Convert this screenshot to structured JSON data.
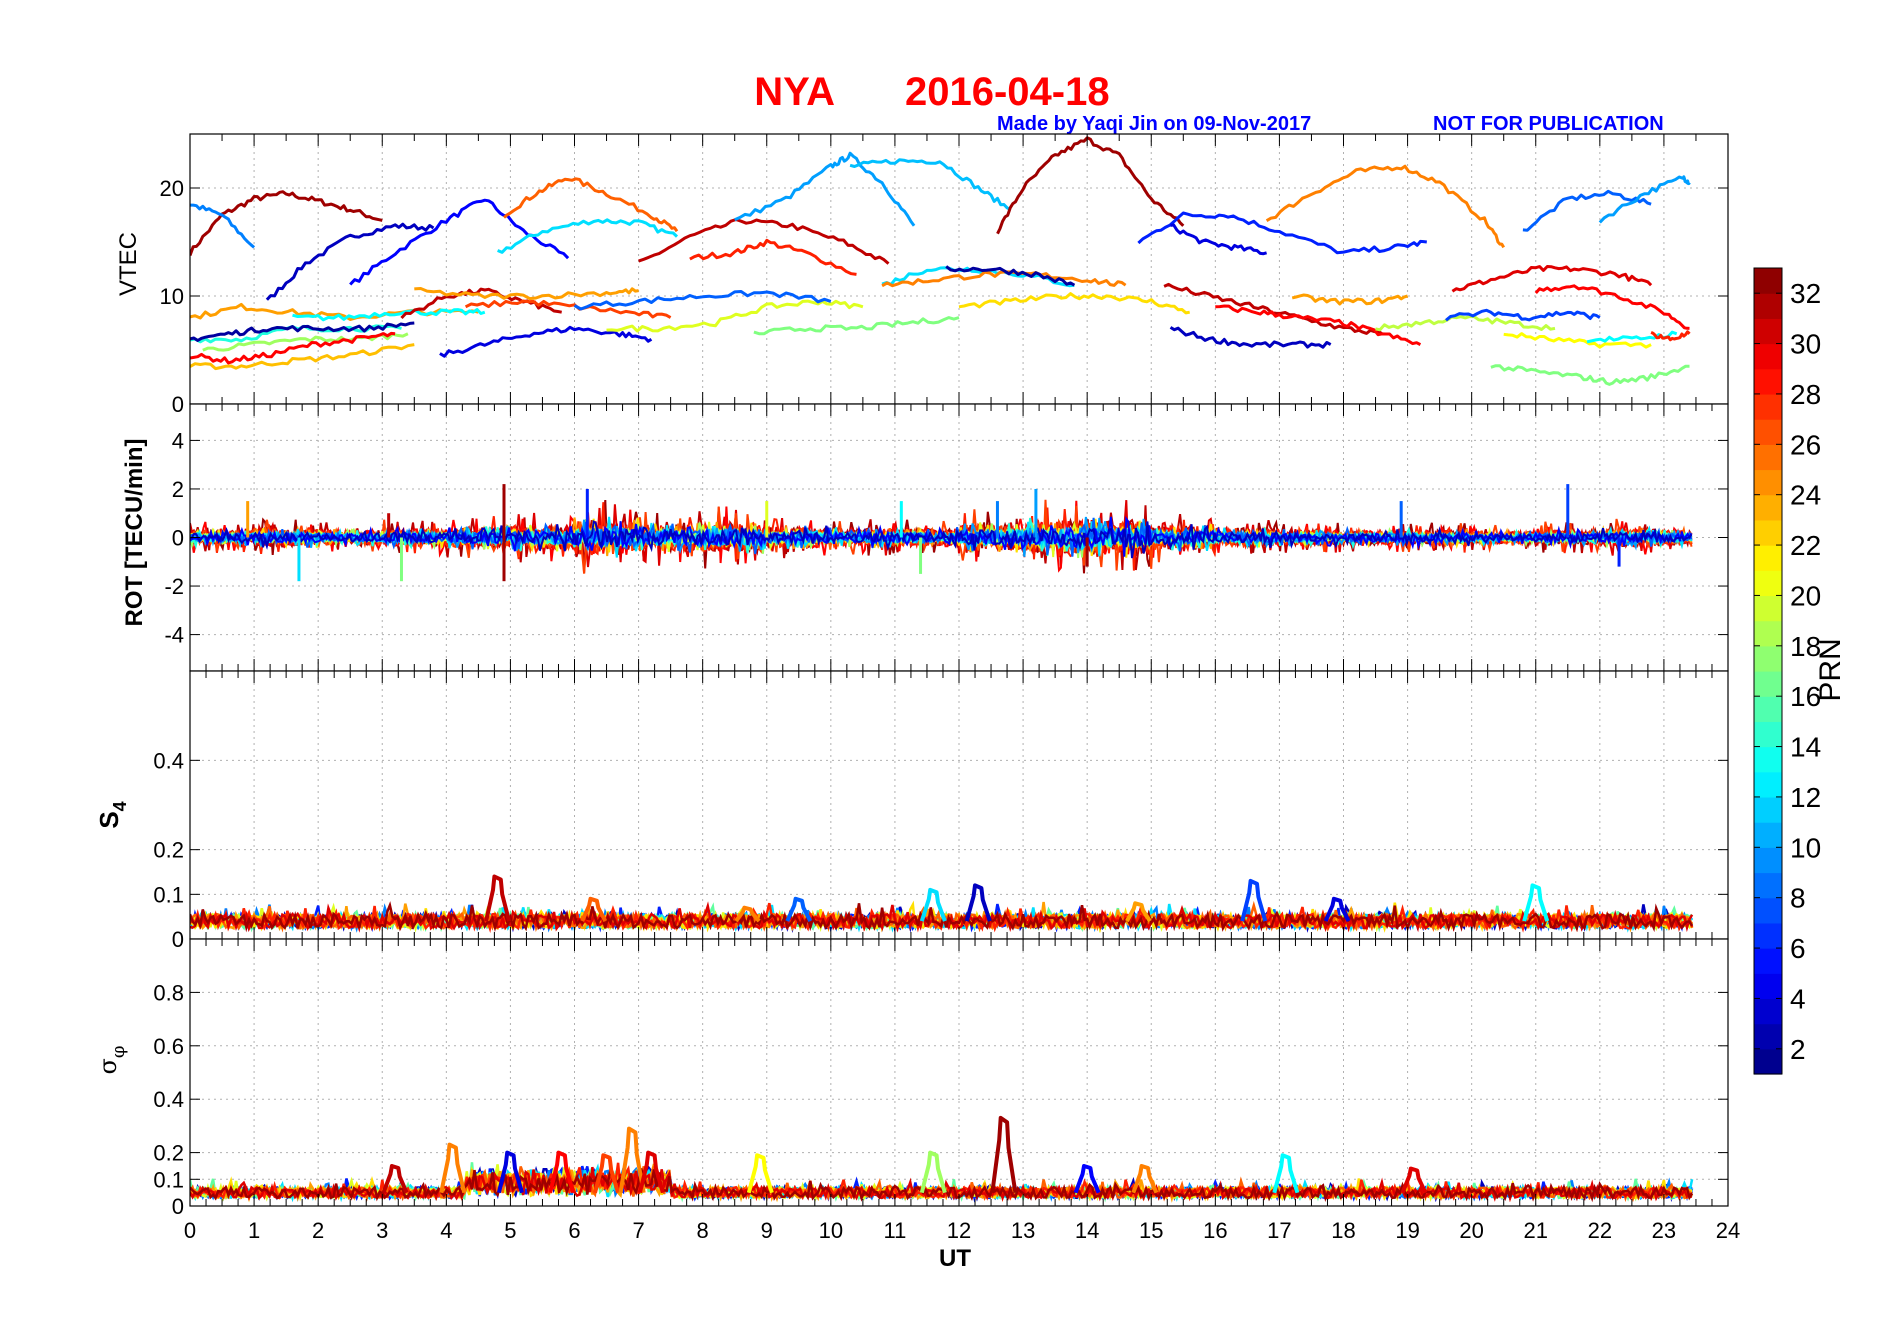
{
  "title": {
    "station": "NYA",
    "date": "2016-04-18"
  },
  "credit": "Made by Yaqi Jin on 09-Nov-2017",
  "notice": "NOT FOR PUBLICATION",
  "colors": {
    "title": "#ff0000",
    "credit": "#0000ff",
    "axis": "#000000",
    "grid": "#b0b0b0"
  },
  "x_axis": {
    "label": "UT",
    "range": [
      0,
      24
    ],
    "ticks": [
      0,
      1,
      2,
      3,
      4,
      5,
      6,
      7,
      8,
      9,
      10,
      11,
      12,
      13,
      14,
      15,
      16,
      17,
      18,
      19,
      20,
      21,
      22,
      23,
      24
    ]
  },
  "colorbar": {
    "label": "PRN",
    "range": [
      1,
      33
    ],
    "ticks": [
      2,
      4,
      6,
      8,
      10,
      12,
      14,
      16,
      18,
      20,
      22,
      24,
      26,
      28,
      30,
      32
    ],
    "colormap": "jet"
  },
  "chart_data": [
    {
      "type": "line",
      "panel": "vtec",
      "ylabel": "VTEC",
      "xlim": [
        0,
        24
      ],
      "ylim": [
        0,
        25
      ],
      "yticks": [
        0,
        10,
        20
      ],
      "series": [
        {
          "prn": 32,
          "x": [
            0.0,
            0.5,
            1.0,
            1.5,
            2.0,
            2.5,
            3.0
          ],
          "y": [
            14,
            17.5,
            19,
            19.5,
            18.8,
            18,
            17
          ]
        },
        {
          "prn": 9,
          "x": [
            0.0,
            0.5,
            1.0
          ],
          "y": [
            18.5,
            17.5,
            14.5
          ]
        },
        {
          "prn": 3,
          "x": [
            1.2,
            1.8,
            2.5,
            3.2,
            3.8
          ],
          "y": [
            9.5,
            13,
            15.5,
            16.5,
            16.3
          ]
        },
        {
          "prn": 5,
          "x": [
            2.5,
            3.2,
            4.0,
            4.6,
            5.2,
            5.9
          ],
          "y": [
            11,
            14,
            17,
            19,
            16,
            13.5
          ]
        },
        {
          "prn": 12,
          "x": [
            4.8,
            5.5,
            6.3,
            7.0,
            7.6
          ],
          "y": [
            14,
            16,
            17,
            16.8,
            15.5
          ]
        },
        {
          "prn": 26,
          "x": [
            4.9,
            5.4,
            5.9,
            6.5,
            7.2,
            7.6
          ],
          "y": [
            17.5,
            19.5,
            21,
            19.5,
            17.5,
            16
          ]
        },
        {
          "prn": 31,
          "x": [
            7.0,
            7.8,
            8.6,
            9.4,
            10.2,
            10.9
          ],
          "y": [
            13,
            15.5,
            17,
            16.5,
            15,
            13
          ]
        },
        {
          "prn": 28,
          "x": [
            7.8,
            8.5,
            9.0,
            9.6,
            10.4
          ],
          "y": [
            13.5,
            14,
            15,
            14,
            12
          ]
        },
        {
          "prn": 10,
          "x": [
            8.5,
            9.3,
            10.0,
            10.3,
            10.8,
            11.3
          ],
          "y": [
            17,
            19,
            22,
            23,
            20.5,
            16.5
          ]
        },
        {
          "prn": 11,
          "x": [
            10.3,
            11.0,
            11.7,
            12.3,
            12.8
          ],
          "y": [
            22,
            22.5,
            22.5,
            20,
            18
          ]
        },
        {
          "prn": 32,
          "x": [
            12.6,
            13.0,
            13.5,
            14.0,
            14.5,
            15.0,
            15.5
          ],
          "y": [
            16,
            20,
            23,
            24.5,
            23,
            19,
            16.5
          ]
        },
        {
          "prn": 6,
          "x": [
            14.8,
            15.5,
            16.2,
            17.0,
            18.0,
            18.8,
            19.3
          ],
          "y": [
            15,
            17.5,
            17.5,
            16,
            14,
            14.5,
            15
          ]
        },
        {
          "prn": 4,
          "x": [
            15.3,
            15.8,
            16.3,
            16.8
          ],
          "y": [
            16.5,
            15,
            14.5,
            14
          ]
        },
        {
          "prn": 25,
          "x": [
            16.8,
            17.5,
            18.2,
            18.9,
            19.5,
            20.2,
            20.5
          ],
          "y": [
            17,
            19.5,
            21.5,
            22,
            20.5,
            17,
            14.5
          ]
        },
        {
          "prn": 8,
          "x": [
            20.8,
            21.5,
            22.2,
            22.8
          ],
          "y": [
            16,
            19,
            19.5,
            18.5
          ]
        },
        {
          "prn": 10,
          "x": [
            22.0,
            22.7,
            23.3,
            23.4
          ],
          "y": [
            17,
            19.5,
            21,
            20.5
          ]
        },
        {
          "prn": 30,
          "x": [
            19.7,
            20.3,
            21.0,
            21.6,
            22.3,
            22.8
          ],
          "y": [
            10.5,
            11.5,
            12.5,
            12.5,
            12,
            11
          ]
        },
        {
          "prn": 29,
          "x": [
            21.0,
            21.6,
            22.3,
            23.0,
            23.4
          ],
          "y": [
            10.5,
            11,
            10,
            8.5,
            7
          ]
        },
        {
          "prn": 24,
          "x": [
            0.0,
            0.8,
            1.6,
            2.5,
            3.5,
            4.5
          ],
          "y": [
            8,
            9,
            8.5,
            8,
            8.5,
            8.5
          ]
        },
        {
          "prn": 14,
          "x": [
            0.0,
            0.8,
            1.6,
            2.5,
            3.3
          ],
          "y": [
            6,
            6,
            7,
            7,
            7
          ]
        },
        {
          "prn": 2,
          "x": [
            0.0,
            0.6,
            1.2,
            2.0,
            2.8,
            3.5
          ],
          "y": [
            6,
            6.5,
            7,
            7,
            7,
            7.5
          ]
        },
        {
          "prn": 23,
          "x": [
            0.0,
            0.8,
            1.6,
            2.5,
            3.5
          ],
          "y": [
            3.5,
            3.5,
            4,
            4.5,
            5.5
          ]
        },
        {
          "prn": 18,
          "x": [
            0.2,
            1.0,
            1.8,
            2.6,
            3.4
          ],
          "y": [
            5,
            5.5,
            6,
            6,
            6.5
          ]
        },
        {
          "prn": 29,
          "x": [
            0.0,
            0.6,
            1.2,
            1.9,
            2.6,
            3.2
          ],
          "y": [
            4.5,
            4,
            4.5,
            5.5,
            6,
            6.5
          ]
        },
        {
          "prn": 13,
          "x": [
            1.6,
            2.4,
            3.2,
            4.0,
            4.6
          ],
          "y": [
            8,
            8,
            8.5,
            8.5,
            8.5
          ]
        },
        {
          "prn": 4,
          "x": [
            3.9,
            4.6,
            5.3,
            6.0,
            6.7,
            7.2
          ],
          "y": [
            4.5,
            5.5,
            6.5,
            7,
            6.5,
            6
          ]
        },
        {
          "prn": 31,
          "x": [
            3.3,
            4.0,
            4.6,
            5.2,
            5.8
          ],
          "y": [
            8,
            10,
            10.5,
            9.5,
            8.5
          ]
        },
        {
          "prn": 24,
          "x": [
            3.5,
            4.5,
            5.5,
            6.5,
            7.0
          ],
          "y": [
            10.5,
            10,
            10,
            10.3,
            10.5
          ]
        },
        {
          "prn": 27,
          "x": [
            4.3,
            5.2,
            6.0,
            6.8,
            7.5
          ],
          "y": [
            9,
            9.5,
            9,
            8.5,
            8
          ]
        },
        {
          "prn": 20,
          "x": [
            6.5,
            7.3,
            8.2,
            9.0,
            9.8,
            10.5
          ],
          "y": [
            7,
            7,
            7.5,
            9,
            9.5,
            9
          ]
        },
        {
          "prn": 8,
          "x": [
            6.0,
            7.0,
            8.0,
            9.0,
            10.0
          ],
          "y": [
            9,
            9.5,
            10,
            10.3,
            9.5
          ]
        },
        {
          "prn": 17,
          "x": [
            8.8,
            9.6,
            10.4,
            11.2,
            12.0
          ],
          "y": [
            6.5,
            7,
            7,
            7.5,
            8
          ]
        },
        {
          "prn": 12,
          "x": [
            10.8,
            11.5,
            12.2,
            13.0,
            13.8
          ],
          "y": [
            11,
            12.5,
            12.5,
            12,
            11
          ]
        },
        {
          "prn": 25,
          "x": [
            10.8,
            11.6,
            12.4,
            13.2,
            14.0,
            14.6
          ],
          "y": [
            11,
            11.5,
            12,
            12,
            11.5,
            11
          ]
        },
        {
          "prn": 2,
          "x": [
            11.8,
            12.5,
            13.2,
            13.8
          ],
          "y": [
            12.5,
            12.5,
            12,
            11
          ]
        },
        {
          "prn": 22,
          "x": [
            12.0,
            12.8,
            13.6,
            14.3,
            15.0,
            15.6
          ],
          "y": [
            9,
            9.5,
            10,
            10,
            9.5,
            8.5
          ]
        },
        {
          "prn": 31,
          "x": [
            15.2,
            15.9,
            16.6,
            17.3,
            18.0,
            18.6
          ],
          "y": [
            11,
            10,
            9,
            8,
            7,
            6.5
          ]
        },
        {
          "prn": 29,
          "x": [
            16.0,
            16.7,
            17.3,
            18.0,
            18.6,
            19.2
          ],
          "y": [
            9,
            8.5,
            8,
            7.5,
            6.5,
            5.5
          ]
        },
        {
          "prn": 3,
          "x": [
            15.3,
            15.9,
            16.5,
            17.2,
            17.8
          ],
          "y": [
            7,
            6,
            5.5,
            5.5,
            5.5
          ]
        },
        {
          "prn": 24,
          "x": [
            17.2,
            17.8,
            18.5,
            19.0
          ],
          "y": [
            10,
            9.5,
            9.5,
            10
          ]
        },
        {
          "prn": 19,
          "x": [
            18.5,
            19.2,
            19.9,
            20.6,
            21.3
          ],
          "y": [
            7,
            7.5,
            8,
            7.5,
            7
          ]
        },
        {
          "prn": 7,
          "x": [
            19.6,
            20.3,
            20.9,
            21.5,
            22.0
          ],
          "y": [
            8,
            8.5,
            8,
            8.5,
            8
          ]
        },
        {
          "prn": 21,
          "x": [
            20.5,
            21.2,
            22.0,
            22.8
          ],
          "y": [
            6.5,
            6,
            5.5,
            5.5
          ]
        },
        {
          "prn": 17,
          "x": [
            20.3,
            21.0,
            21.7,
            22.2,
            22.8,
            23.4
          ],
          "y": [
            3.5,
            3,
            2.5,
            2,
            2.5,
            3.5
          ]
        },
        {
          "prn": 13,
          "x": [
            21.8,
            22.5,
            23.2
          ],
          "y": [
            6,
            6,
            6.5
          ]
        },
        {
          "prn": 28,
          "x": [
            22.8,
            23.1,
            23.4
          ],
          "y": [
            6.5,
            6,
            6.5
          ]
        }
      ]
    },
    {
      "type": "line",
      "panel": "rot",
      "ylabel": "ROT [TECU/min]",
      "xlim": [
        0,
        24
      ],
      "ylim": [
        -5.5,
        5.5
      ],
      "yticks": [
        -4,
        -2,
        0,
        2,
        4
      ],
      "envelope_max": [
        0.5,
        0.6,
        0.5,
        0.6,
        0.7,
        0.8,
        1.2,
        0.9,
        1.0,
        0.7,
        0.6,
        0.6,
        0.9,
        1.2,
        1.2,
        0.8,
        0.6,
        0.5,
        0.5,
        0.5,
        0.4,
        0.5,
        0.6,
        0.5
      ],
      "spikes": [
        {
          "x": 0.9,
          "y": 1.5,
          "prn": 24
        },
        {
          "x": 1.7,
          "y": -1.8,
          "prn": 12
        },
        {
          "x": 3.3,
          "y": -1.8,
          "prn": 17
        },
        {
          "x": 3.1,
          "y": 1.0,
          "prn": 31
        },
        {
          "x": 4.9,
          "y": 2.2,
          "prn": 32
        },
        {
          "x": 4.9,
          "y": -1.8,
          "prn": 32
        },
        {
          "x": 6.2,
          "y": 2.0,
          "prn": 6
        },
        {
          "x": 9.0,
          "y": 1.5,
          "prn": 20
        },
        {
          "x": 11.1,
          "y": 1.5,
          "prn": 13
        },
        {
          "x": 11.4,
          "y": -1.5,
          "prn": 17
        },
        {
          "x": 12.6,
          "y": 1.5,
          "prn": 9
        },
        {
          "x": 13.2,
          "y": 2.0,
          "prn": 10
        },
        {
          "x": 14.0,
          "y": -1.2,
          "prn": 32
        },
        {
          "x": 18.9,
          "y": 1.5,
          "prn": 8
        },
        {
          "x": 21.5,
          "y": 2.2,
          "prn": 7
        },
        {
          "x": 22.3,
          "y": -1.2,
          "prn": 6
        }
      ]
    },
    {
      "type": "line",
      "panel": "s4",
      "ylabel": "S4",
      "xlim": [
        0,
        24
      ],
      "ylim": [
        0,
        0.6
      ],
      "yticks": [
        0,
        0.1,
        0.2,
        0.4
      ],
      "baseline": 0.04,
      "peaks": [
        {
          "x": 4.8,
          "y": 0.14,
          "prn": 31
        },
        {
          "x": 6.3,
          "y": 0.09,
          "prn": 26
        },
        {
          "x": 8.7,
          "y": 0.07,
          "prn": 25
        },
        {
          "x": 9.5,
          "y": 0.09,
          "prn": 8
        },
        {
          "x": 11.6,
          "y": 0.11,
          "prn": 12
        },
        {
          "x": 12.3,
          "y": 0.12,
          "prn": 3
        },
        {
          "x": 16.6,
          "y": 0.13,
          "prn": 7
        },
        {
          "x": 17.9,
          "y": 0.09,
          "prn": 4
        },
        {
          "x": 21.0,
          "y": 0.12,
          "prn": 13
        },
        {
          "x": 14.8,
          "y": 0.08,
          "prn": 24
        }
      ]
    },
    {
      "type": "line",
      "panel": "sigma_phi",
      "ylabel": "σφ",
      "xlim": [
        0,
        24
      ],
      "ylim": [
        0,
        1.0
      ],
      "yticks": [
        0,
        0.1,
        0.2,
        0.4,
        0.6,
        0.8
      ],
      "baseline": 0.05,
      "peaks": [
        {
          "x": 3.2,
          "y": 0.15,
          "prn": 31
        },
        {
          "x": 4.1,
          "y": 0.23,
          "prn": 25
        },
        {
          "x": 5.0,
          "y": 0.2,
          "prn": 4
        },
        {
          "x": 5.8,
          "y": 0.2,
          "prn": 29
        },
        {
          "x": 6.5,
          "y": 0.19,
          "prn": 27
        },
        {
          "x": 6.9,
          "y": 0.29,
          "prn": 25
        },
        {
          "x": 7.2,
          "y": 0.2,
          "prn": 30
        },
        {
          "x": 8.9,
          "y": 0.19,
          "prn": 21
        },
        {
          "x": 11.6,
          "y": 0.2,
          "prn": 18
        },
        {
          "x": 12.7,
          "y": 0.33,
          "prn": 32
        },
        {
          "x": 14.0,
          "y": 0.15,
          "prn": 5
        },
        {
          "x": 14.9,
          "y": 0.15,
          "prn": 25
        },
        {
          "x": 17.1,
          "y": 0.19,
          "prn": 13
        },
        {
          "x": 19.1,
          "y": 0.14,
          "prn": 30
        }
      ]
    }
  ]
}
